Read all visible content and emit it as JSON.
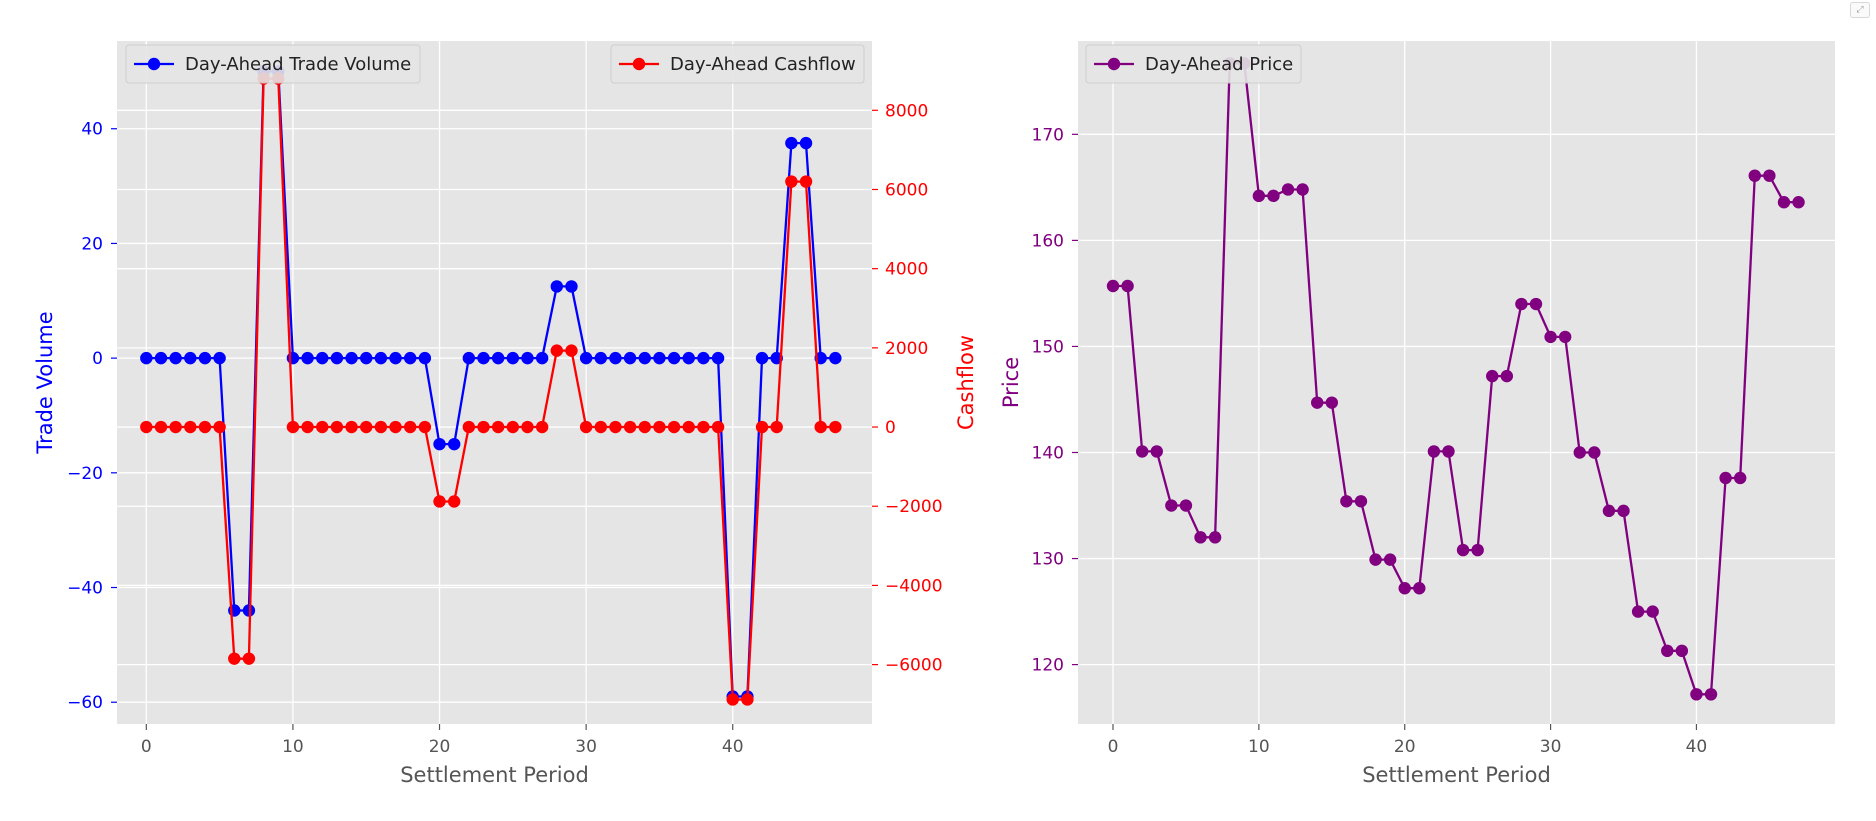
{
  "chart_data": [
    {
      "type": "line",
      "xlabel": "Settlement Period",
      "xlim": [
        -2,
        49.5
      ],
      "xticks": [
        0,
        10,
        20,
        30,
        40
      ],
      "grid": true,
      "background": "#e5e5e5",
      "x": [
        0,
        1,
        2,
        3,
        4,
        5,
        6,
        7,
        8,
        9,
        10,
        11,
        12,
        13,
        14,
        15,
        16,
        17,
        18,
        19,
        20,
        21,
        22,
        23,
        24,
        25,
        26,
        27,
        28,
        29,
        30,
        31,
        32,
        33,
        34,
        35,
        36,
        37,
        38,
        39,
        40,
        41,
        42,
        43,
        44,
        45,
        46,
        47
      ],
      "left_axis": {
        "ylabel": "Trade Volume",
        "ylim": [
          -63.8,
          55.3
        ],
        "yticks": [
          -60,
          -40,
          -20,
          0,
          20,
          40
        ],
        "tick_labels": [
          "−60",
          "−40",
          "−20",
          "0",
          "20",
          "40"
        ],
        "color": "#0000ff"
      },
      "right_axis": {
        "ylabel": "Cashflow",
        "ylim": [
          -7500,
          9750
        ],
        "yticks": [
          -6000,
          -4000,
          -2000,
          0,
          2000,
          4000,
          6000,
          8000
        ],
        "tick_labels": [
          "−6000",
          "−4000",
          "−2000",
          "0",
          "2000",
          "4000",
          "6000",
          "8000"
        ],
        "color": "#ff0000"
      },
      "series": [
        {
          "name": "Day-Ahead Trade Volume",
          "axis": "left",
          "color": "#0000ff",
          "values": [
            0,
            0,
            0,
            0,
            0,
            0,
            -44,
            -44,
            50,
            50,
            0,
            0,
            0,
            0,
            0,
            0,
            0,
            0,
            0,
            0,
            -15,
            -15,
            0,
            0,
            0,
            0,
            0,
            0,
            12.5,
            12.5,
            0,
            0,
            0,
            0,
            0,
            0,
            0,
            0,
            0,
            0,
            -59,
            -59,
            0,
            0,
            37.5,
            37.5,
            0,
            0
          ]
        },
        {
          "name": "Day-Ahead Cashflow",
          "axis": "right",
          "color": "#ff0000",
          "values": [
            0,
            0,
            0,
            0,
            0,
            0,
            -5850,
            -5850,
            8800,
            8800,
            0,
            0,
            0,
            0,
            0,
            0,
            0,
            0,
            0,
            0,
            -1880,
            -1880,
            0,
            0,
            0,
            0,
            0,
            0,
            1930,
            1930,
            0,
            0,
            0,
            0,
            0,
            0,
            0,
            0,
            0,
            0,
            -6880,
            -6880,
            0,
            0,
            6200,
            6200,
            0,
            0
          ]
        }
      ],
      "legends": [
        {
          "series": "Day-Ahead Trade Volume",
          "placement": "top-left"
        },
        {
          "series": "Day-Ahead Cashflow",
          "placement": "top-right"
        }
      ]
    },
    {
      "type": "line",
      "xlabel": "Settlement Period",
      "ylabel": "Price",
      "xlim": [
        -2.4,
        49.5
      ],
      "ylim": [
        114.4,
        178.8
      ],
      "xticks": [
        0,
        10,
        20,
        30,
        40
      ],
      "yticks": [
        120,
        130,
        140,
        150,
        160,
        170
      ],
      "grid": true,
      "background": "#e5e5e5",
      "color": "#800080",
      "legend": "top-left",
      "x": [
        0,
        1,
        2,
        3,
        4,
        5,
        6,
        7,
        8,
        9,
        10,
        11,
        12,
        13,
        14,
        15,
        16,
        17,
        18,
        19,
        20,
        21,
        22,
        23,
        24,
        25,
        26,
        27,
        28,
        29,
        30,
        31,
        32,
        33,
        34,
        35,
        36,
        37,
        38,
        39,
        40,
        41,
        42,
        43,
        44,
        45,
        46,
        47
      ],
      "series": [
        {
          "name": "Day-Ahead Price",
          "color": "#800080",
          "values": [
            155.7,
            155.7,
            140.1,
            140.1,
            135.0,
            135.0,
            132.0,
            132.0,
            176.7,
            176.7,
            164.2,
            164.2,
            164.8,
            164.8,
            144.7,
            144.7,
            135.4,
            135.4,
            129.9,
            129.9,
            127.2,
            127.2,
            140.1,
            140.1,
            130.8,
            130.8,
            147.2,
            147.2,
            154.0,
            154.0,
            150.9,
            150.9,
            140.0,
            140.0,
            134.5,
            134.5,
            125.0,
            125.0,
            121.3,
            121.3,
            117.2,
            117.2,
            137.6,
            137.6,
            166.1,
            166.1,
            163.6,
            163.6
          ]
        }
      ]
    }
  ]
}
